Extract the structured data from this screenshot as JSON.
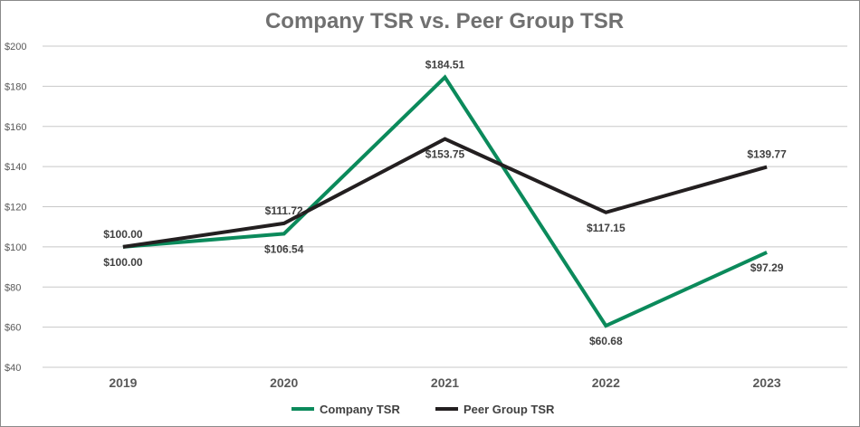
{
  "chart_data": {
    "type": "line",
    "title": "Company TSR vs. Peer Group TSR",
    "categories": [
      "2019",
      "2020",
      "2021",
      "2022",
      "2023"
    ],
    "ylim": [
      40,
      200
    ],
    "yticks": [
      40,
      60,
      80,
      100,
      120,
      140,
      160,
      180,
      200
    ],
    "ytick_labels": [
      "$40",
      "$60",
      "$80",
      "$100",
      "$120",
      "$140",
      "$160",
      "$180",
      "$200"
    ],
    "grid": true,
    "legend_position": "bottom",
    "series": [
      {
        "name": "Company TSR",
        "color": "#0b8a5b",
        "values": [
          100.0,
          106.54,
          184.51,
          60.68,
          97.29
        ],
        "labels": [
          "$100.00",
          "$106.54",
          "$184.51",
          "$60.68",
          "$97.29"
        ],
        "label_positions": [
          "below",
          "below",
          "above",
          "below",
          "below"
        ]
      },
      {
        "name": "Peer Group TSR",
        "color": "#231f20",
        "values": [
          100.0,
          111.72,
          153.75,
          117.15,
          139.77
        ],
        "labels": [
          "$100.00",
          "$111.72",
          "$153.75",
          "$117.15",
          "$139.77"
        ],
        "label_positions": [
          "above",
          "above",
          "below",
          "below",
          "above"
        ]
      }
    ]
  }
}
